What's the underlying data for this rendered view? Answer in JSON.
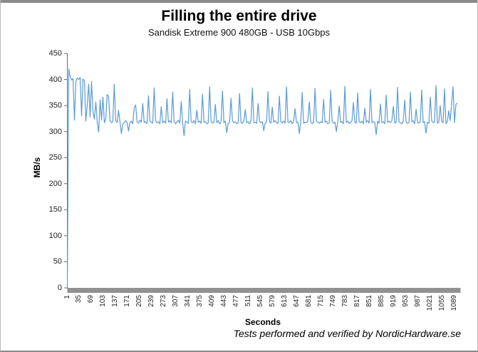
{
  "header": {
    "title": "Filling the entire drive",
    "subtitle": "Sandisk Extreme 900 480GB - USB 10Gbps"
  },
  "footer": {
    "credit": "Tests performed and verified by NordicHardware.se"
  },
  "chart_data": {
    "type": "line",
    "title": "Filling the entire drive",
    "subtitle": "Sandisk Extreme 900 480GB - USB 10Gbps",
    "xlabel": "Seconds",
    "ylabel": "MB/s",
    "ylim": [
      0,
      450
    ],
    "xlim": [
      1,
      1100
    ],
    "grid": false,
    "legend": "none",
    "line_color": "#5B9BD5",
    "axis_color": "#6e6e6e",
    "baseline_bar_color": "#919191",
    "y_ticks": [
      0,
      50,
      100,
      150,
      200,
      250,
      300,
      350,
      400,
      450
    ],
    "x_tick_labels": [
      1,
      35,
      69,
      103,
      137,
      171,
      205,
      239,
      273,
      307,
      341,
      375,
      409,
      443,
      477,
      511,
      545,
      579,
      613,
      647,
      681,
      715,
      749,
      783,
      817,
      851,
      885,
      919,
      953,
      987,
      1021,
      1055,
      1089
    ],
    "x_start": 1,
    "x_step": 4,
    "values": [
      2,
      420,
      406,
      399,
      402,
      322,
      397,
      403,
      400,
      404,
      330,
      401,
      398,
      320,
      352,
      391,
      328,
      396,
      338,
      324,
      357,
      318,
      299,
      361,
      322,
      366,
      317,
      324,
      371,
      368,
      321,
      317,
      319,
      391,
      321,
      317,
      341,
      319,
      296,
      315,
      317,
      321,
      318,
      301,
      317,
      320,
      315,
      346,
      351,
      319,
      316,
      322,
      318,
      354,
      317,
      319,
      315,
      369,
      320,
      318,
      316,
      384,
      321,
      317,
      319,
      315,
      348,
      317,
      320,
      316,
      363,
      318,
      321,
      317,
      376,
      319,
      315,
      318,
      322,
      316,
      358,
      317,
      292,
      320,
      318,
      316,
      381,
      319,
      317,
      321,
      315,
      341,
      318,
      320,
      316,
      372,
      318,
      319,
      315,
      317,
      386,
      320,
      316,
      318,
      352,
      317,
      321,
      315,
      319,
      378,
      317,
      320,
      298,
      316,
      318,
      364,
      321,
      317,
      319,
      315,
      317,
      373,
      318,
      316,
      320,
      342,
      317,
      319,
      315,
      321,
      384,
      317,
      318,
      316,
      354,
      320,
      317,
      319,
      302,
      316,
      318,
      377,
      320,
      316,
      347,
      318,
      321,
      317,
      315,
      368,
      319,
      317,
      320,
      316,
      386,
      318,
      317,
      321,
      315,
      319,
      344,
      317,
      318,
      296,
      320,
      375,
      316,
      318,
      317,
      321,
      357,
      319,
      315,
      317,
      383,
      320,
      318,
      316,
      319,
      317,
      362,
      318,
      320,
      315,
      317,
      379,
      321,
      316,
      318,
      300,
      320,
      349,
      317,
      319,
      315,
      387,
      318,
      320,
      316,
      317,
      321,
      356,
      318,
      316,
      374,
      319,
      317,
      320,
      315,
      345,
      318,
      321,
      316,
      381,
      317,
      319,
      318,
      294,
      320,
      316,
      353,
      317,
      319,
      315,
      370,
      318,
      320,
      317,
      321,
      348,
      316,
      318,
      385,
      319,
      317,
      315,
      320,
      361,
      318,
      316,
      317,
      376,
      319,
      321,
      315,
      343,
      318,
      316,
      320,
      380,
      317,
      319,
      297,
      318,
      316,
      366,
      321,
      317,
      319,
      388,
      316,
      318,
      350,
      320,
      317,
      382,
      315,
      319,
      340,
      321,
      354,
      386,
      317,
      352,
      355
    ]
  }
}
